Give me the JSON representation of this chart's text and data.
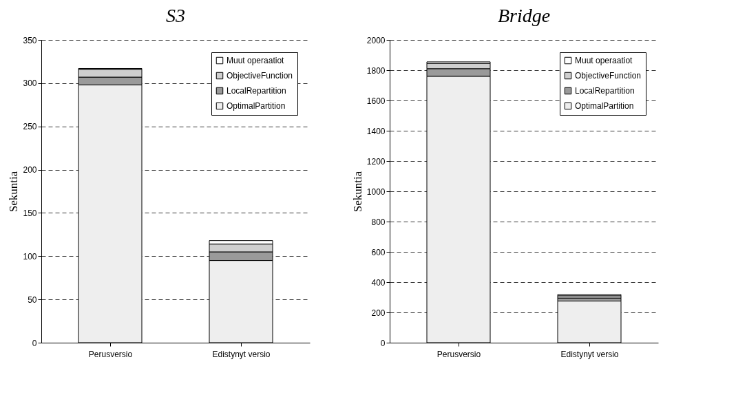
{
  "chart_data": [
    {
      "type": "bar",
      "title": "S3",
      "ylabel": "Sekuntia",
      "categories": [
        "Perusversio",
        "Edistynyt versio"
      ],
      "stacked": true,
      "ylim": [
        0,
        350
      ],
      "yticks": [
        0,
        50,
        100,
        150,
        200,
        250,
        300,
        350
      ],
      "grid": "y",
      "legend": "top right",
      "series": [
        {
          "name": "OptimalPartition",
          "color": "#eeeeee",
          "values": [
            298,
            95
          ]
        },
        {
          "name": "LocalRepartition",
          "color": "#9a9a9a",
          "values": [
            9,
            10
          ]
        },
        {
          "name": "ObjectiveFunction",
          "color": "#cfcfcf",
          "values": [
            9,
            9
          ]
        },
        {
          "name": "Muut operaatiot",
          "color": "#ffffff",
          "values": [
            1,
            4
          ]
        }
      ]
    },
    {
      "type": "bar",
      "title": "Bridge",
      "ylabel": "Sekuntia",
      "categories": [
        "Perusversio",
        "Edistynyt versio"
      ],
      "stacked": true,
      "ylim": [
        0,
        2000
      ],
      "yticks": [
        0,
        200,
        400,
        600,
        800,
        1000,
        1200,
        1400,
        1600,
        1800,
        2000
      ],
      "grid": "y",
      "legend": "top right",
      "series": [
        {
          "name": "OptimalPartition",
          "color": "#eeeeee",
          "values": [
            1760,
            275
          ]
        },
        {
          "name": "LocalRepartition",
          "color": "#9a9a9a",
          "values": [
            50,
            20
          ]
        },
        {
          "name": "ObjectiveFunction",
          "color": "#cfcfcf",
          "values": [
            35,
            15
          ]
        },
        {
          "name": "Muut operaatiot",
          "color": "#ffffff",
          "values": [
            10,
            8
          ]
        }
      ]
    }
  ]
}
